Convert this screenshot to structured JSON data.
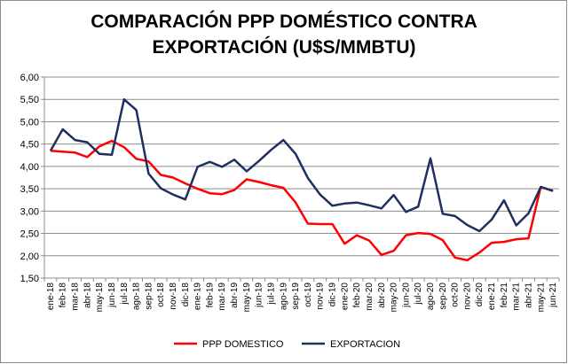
{
  "chart_data": {
    "type": "line",
    "title_line1": "COMPARACIÓN PPP DOMÉSTICO CONTRA",
    "title_line2": "EXPORTACIÓN (U$S/MMBTU)",
    "xlabel": "",
    "ylabel": "",
    "ylim": [
      1.5,
      6.0
    ],
    "ystep": 0.5,
    "y_ticks": [
      "1,50",
      "2,00",
      "2,50",
      "3,00",
      "3,50",
      "4,00",
      "4,50",
      "5,00",
      "5,50",
      "6,00"
    ],
    "grid": true,
    "legend_position": "bottom",
    "categories": [
      "ene-18",
      "feb-18",
      "mar-18",
      "abr-18",
      "may-18",
      "jun-18",
      "jul-18",
      "ago-18",
      "sep-18",
      "oct-18",
      "nov-18",
      "dic-18",
      "ene-19",
      "feb-19",
      "mar-19",
      "abr-19",
      "may-19",
      "jun-19",
      "jul-19",
      "ago-19",
      "sep-19",
      "oct-19",
      "nov-19",
      "dic-19",
      "ene-20",
      "feb-20",
      "mar-20",
      "abr-20",
      "may-20",
      "jun-20",
      "jul-20",
      "ago-20",
      "sep-20",
      "oct-20",
      "nov-20",
      "dic-20",
      "ene-21",
      "feb-21",
      "mar-21",
      "abr-21",
      "may-21",
      "jun-21"
    ],
    "series": [
      {
        "name": "PPP DOMESTICO",
        "color": "#ff0000",
        "values": [
          4.35,
          4.33,
          4.31,
          4.21,
          4.45,
          4.57,
          4.43,
          4.17,
          4.11,
          3.81,
          3.75,
          3.62,
          3.5,
          3.4,
          3.38,
          3.47,
          3.71,
          3.65,
          3.58,
          3.52,
          3.19,
          2.72,
          2.71,
          2.71,
          2.27,
          2.46,
          2.34,
          2.02,
          2.11,
          2.46,
          2.51,
          2.49,
          2.35,
          1.96,
          1.9,
          2.07,
          2.29,
          2.31,
          2.37,
          2.39,
          3.54,
          3.45
        ]
      },
      {
        "name": "EXPORTACION",
        "color": "#1f2f5f",
        "values": [
          4.35,
          4.83,
          4.59,
          4.54,
          4.28,
          4.26,
          5.5,
          5.26,
          3.84,
          3.51,
          3.37,
          3.26,
          3.99,
          4.1,
          3.99,
          4.15,
          3.89,
          4.12,
          4.37,
          4.59,
          4.28,
          3.74,
          3.37,
          3.12,
          3.17,
          3.19,
          3.13,
          3.06,
          3.36,
          2.98,
          3.1,
          4.18,
          2.94,
          2.89,
          2.69,
          2.55,
          2.81,
          3.24,
          2.68,
          2.95,
          3.54,
          3.45
        ]
      }
    ]
  }
}
